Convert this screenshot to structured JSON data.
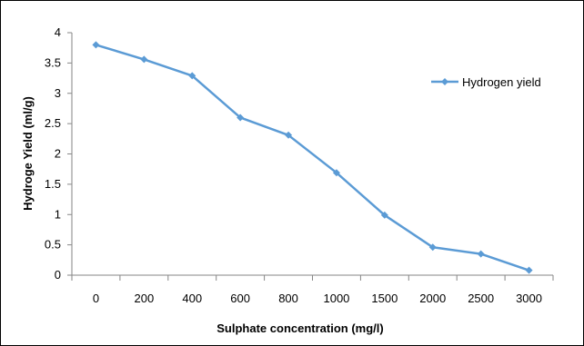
{
  "chart_data": {
    "type": "line",
    "categories": [
      "0",
      "200",
      "400",
      "600",
      "800",
      "1000",
      "1500",
      "2000",
      "2500",
      "3000"
    ],
    "series": [
      {
        "name": "Hydrogen yield",
        "values": [
          3.8,
          3.56,
          3.29,
          2.6,
          2.31,
          1.69,
          0.99,
          0.46,
          0.35,
          0.08
        ]
      }
    ],
    "ylim": [
      0,
      4
    ],
    "yticks": [
      "0",
      "0.5",
      "1",
      "1.5",
      "2",
      "2.5",
      "3",
      "3.5",
      "4"
    ],
    "xlabel": "Sulphate concentration (mg/l)",
    "ylabel": "Hydroge Yield (ml/g)",
    "legend_position": "right",
    "grid": false,
    "line_color": "#5b9bd5"
  }
}
